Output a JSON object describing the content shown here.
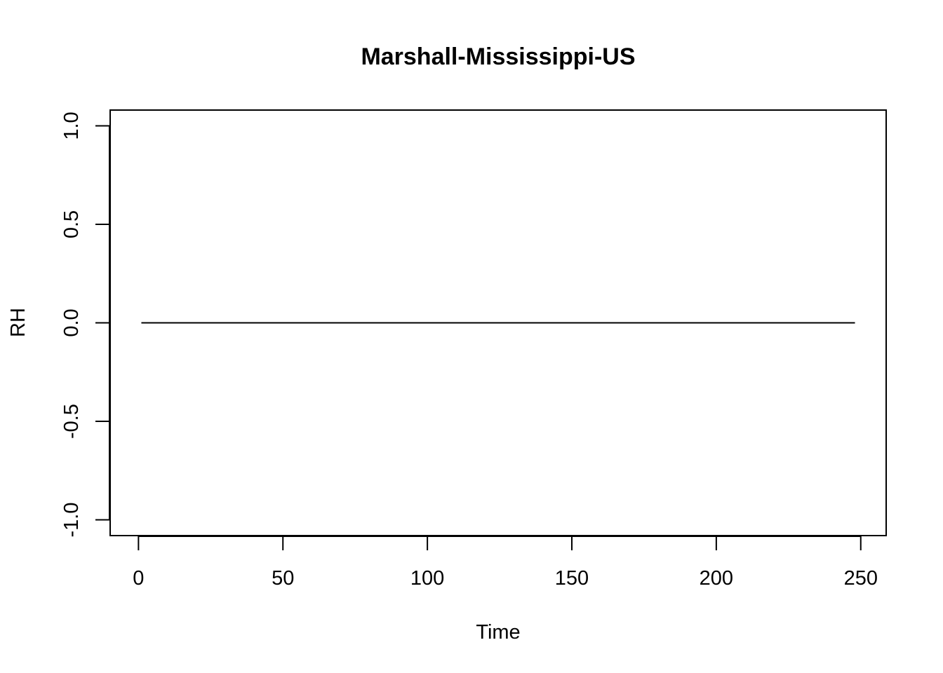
{
  "chart_data": {
    "type": "line",
    "title": "Marshall-Mississippi-US",
    "xlabel": "Time",
    "ylabel": "RH",
    "xlim": [
      -9.8,
      258.8
    ],
    "ylim": [
      -1.08,
      1.08
    ],
    "x_ticks": [
      0,
      50,
      100,
      150,
      200,
      250
    ],
    "x_tick_labels": [
      "0",
      "50",
      "100",
      "150",
      "200",
      "250"
    ],
    "y_ticks": [
      -1.0,
      -0.5,
      0.0,
      0.5,
      1.0
    ],
    "y_tick_labels": [
      "-1.0",
      "-0.5",
      "0.0",
      "0.5",
      "1.0"
    ],
    "grid": false,
    "series": [
      {
        "color": "#000000",
        "x": [
          1,
          248
        ],
        "y": [
          0,
          0
        ]
      }
    ]
  }
}
